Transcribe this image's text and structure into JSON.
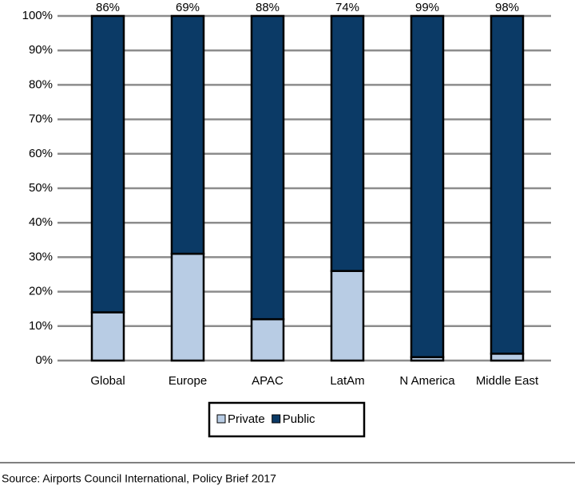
{
  "chart_data": {
    "type": "stacked_bar",
    "categories": [
      "Global",
      "Europe",
      "APAC",
      "LatAm",
      "N America",
      "Middle East"
    ],
    "series": [
      {
        "name": "Private",
        "color": "#b8cce4",
        "values": [
          14,
          31,
          12,
          26,
          1,
          2
        ]
      },
      {
        "name": "Public",
        "color": "#0b3a66",
        "values": [
          86,
          69,
          88,
          74,
          99,
          98
        ],
        "value_labels": [
          "86%",
          "69%",
          "88%",
          "74%",
          "99%",
          "98%"
        ]
      }
    ],
    "ylim": [
      0,
      100
    ],
    "yticks": [
      {
        "value": 0,
        "label": "0%"
      },
      {
        "value": 10,
        "label": "10%"
      },
      {
        "value": 20,
        "label": "20%"
      },
      {
        "value": 30,
        "label": "30%"
      },
      {
        "value": 40,
        "label": "40%"
      },
      {
        "value": 50,
        "label": "50%"
      },
      {
        "value": 60,
        "label": "60%"
      },
      {
        "value": 70,
        "label": "70%"
      },
      {
        "value": 80,
        "label": "80%"
      },
      {
        "value": 90,
        "label": "90%"
      },
      {
        "value": 100,
        "label": "100%"
      }
    ],
    "grid": true,
    "legend": "bottom",
    "source": "Source: Airports Council International, Policy Brief 2017"
  }
}
